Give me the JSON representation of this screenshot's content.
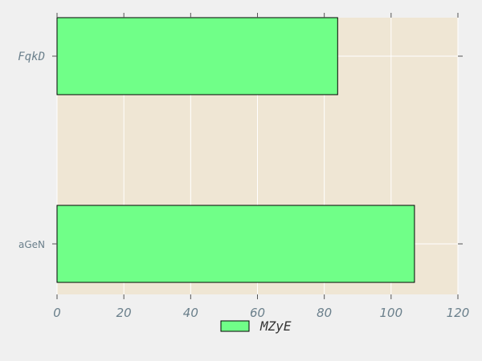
{
  "chart_data": {
    "type": "bar",
    "orientation": "horizontal",
    "categories": [
      "FqkD",
      "aGeN"
    ],
    "series": [
      {
        "name": "MZyE",
        "values": [
          84,
          107
        ],
        "color": "#70ff88"
      }
    ],
    "xlim": [
      0,
      120
    ],
    "xticks": [
      "0",
      "20",
      "40",
      "60",
      "80",
      "100",
      "120"
    ],
    "title": "",
    "xlabel": "",
    "ylabel": "",
    "grid": true,
    "legend_position": "bottom-center",
    "colors": {
      "plot_background": "#efe6d4",
      "figure_background": "#f0f0f0",
      "grid": "#ffffff",
      "tick_label": "#6a7f8b",
      "bar_edge": "#000000"
    }
  }
}
